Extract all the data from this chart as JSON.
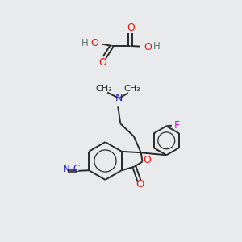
{
  "bg_color": "#e8eaec",
  "bond_color": "#2a2a2a",
  "o_color": "#ee1111",
  "n_color": "#2222cc",
  "f_color": "#cc11cc",
  "h_color": "#607878",
  "figsize": [
    3.0,
    3.0
  ],
  "dpi": 100,
  "xlim": [
    0,
    10
  ],
  "ylim": [
    0,
    10
  ]
}
